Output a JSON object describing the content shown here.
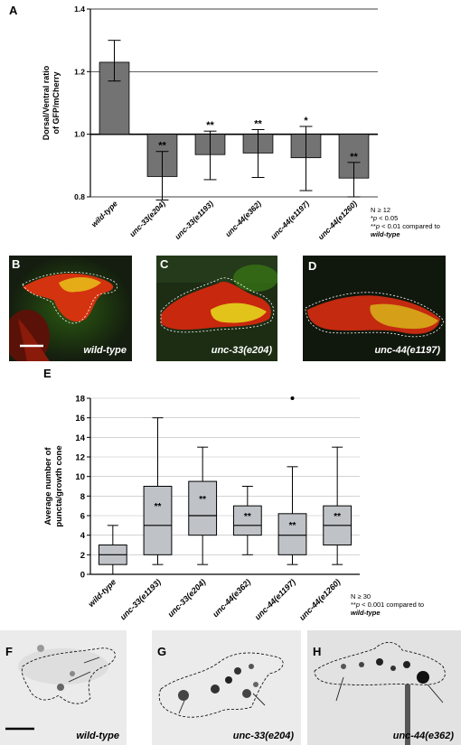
{
  "panel_letters": {
    "a": "A",
    "e": "E"
  },
  "chart_data": [
    {
      "type": "bar",
      "panel": "A",
      "ylabel_line1": "Dorsal/Ventral ratio",
      "ylabel_line2": "of GFP/mCherry",
      "ylim": [
        0.8,
        1.4
      ],
      "yticks": [
        "0.8",
        "1.0",
        "1.2",
        "1.4"
      ],
      "reference_line": 1.0,
      "grid": true,
      "categories": [
        "wild-type",
        "unc-33(e204)",
        "unc-33(e1193)",
        "unc-44(e362)",
        "unc-44(e1197)",
        "unc-44(e1260)"
      ],
      "values": [
        1.23,
        0.865,
        0.935,
        0.94,
        0.925,
        0.86
      ],
      "error_low": [
        1.17,
        0.79,
        0.855,
        0.862,
        0.82,
        0.8
      ],
      "error_high": [
        1.3,
        0.945,
        1.01,
        1.015,
        1.025,
        0.91
      ],
      "significance": [
        "",
        "**",
        "**",
        "**",
        "*",
        "**"
      ]
    },
    {
      "type": "box",
      "panel": "E",
      "ylabel_line1": "Average number of",
      "ylabel_line2": "puncta/growth cone",
      "ylim": [
        0,
        18
      ],
      "yticks": [
        "0",
        "2",
        "4",
        "6",
        "8",
        "10",
        "12",
        "14",
        "16",
        "18"
      ],
      "grid": true,
      "categories": [
        "wild-type",
        "unc-33(e1193)",
        "unc-33(e204)",
        "unc-44(e362)",
        "unc-44(e1197)",
        "unc-44(e1260)"
      ],
      "boxes": [
        {
          "min": 0,
          "q1": 1,
          "median": 2,
          "q3": 3,
          "max": 5,
          "sig": ""
        },
        {
          "min": 1,
          "q1": 2,
          "median": 5,
          "q3": 9,
          "max": 16,
          "sig": "**"
        },
        {
          "min": 1,
          "q1": 4,
          "median": 6,
          "q3": 9.5,
          "max": 13,
          "sig": "**"
        },
        {
          "min": 2,
          "q1": 4,
          "median": 5,
          "q3": 7,
          "max": 9,
          "sig": "**"
        },
        {
          "min": 1,
          "q1": 2,
          "median": 4,
          "q3": 6.2,
          "max": 11,
          "sig": "**",
          "outlier": 18
        },
        {
          "min": 1,
          "q1": 3,
          "median": 5,
          "q3": 7,
          "max": 13,
          "sig": "**"
        }
      ]
    }
  ],
  "notes_a": {
    "n": "N ≥ 12",
    "p1_sym": "*",
    "p1_p": "p",
    "p1_rest": " < 0.05",
    "p2_sym": "**",
    "p2_p": "p",
    "p2_rest": " < 0.01 compared to",
    "p2_geno": "wild-type"
  },
  "notes_e": {
    "n": "N ≥ 30",
    "p_sym": "**",
    "p_p": "p",
    "p_rest": " < 0.001 compared to",
    "p_geno": "wild-type"
  },
  "fluor_panels": [
    {
      "letter": "B",
      "label": "wild-type"
    },
    {
      "letter": "C",
      "label": "unc-33(e204)"
    },
    {
      "letter": "D",
      "label": "unc-44(e1197)"
    }
  ],
  "gray_panels": [
    {
      "letter": "F",
      "label": "wild-type"
    },
    {
      "letter": "G",
      "label": "unc-33(e204)"
    },
    {
      "letter": "H",
      "label": "unc-44(e362)"
    }
  ],
  "colors": {
    "bar_fill": "#737373",
    "box_fill": "#bfc3c7",
    "panel_bg_fluor": "#0f1a0c",
    "gray_bg": "#e9e9e9"
  }
}
